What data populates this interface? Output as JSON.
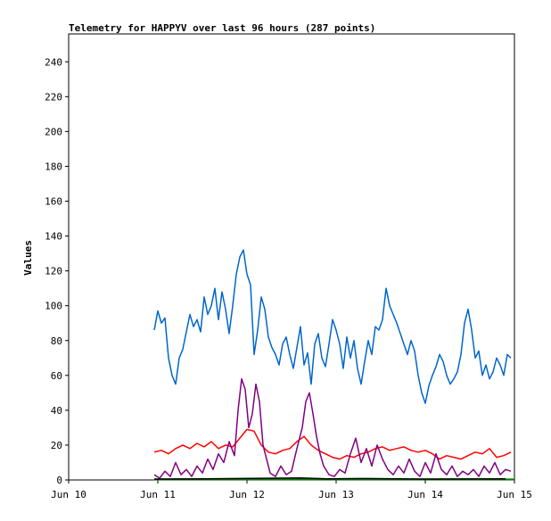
{
  "chart_data": {
    "type": "line",
    "title": "Telemetry for HAPPYV over last 96 hours (287 points)",
    "ylabel": "Values",
    "xlabel": "",
    "xlim": [
      0,
      5
    ],
    "ylim": [
      0,
      256
    ],
    "x_ticks": [
      {
        "value": 0,
        "label": "Jun 10"
      },
      {
        "value": 1,
        "label": "Jun 11"
      },
      {
        "value": 2,
        "label": "Jun 12"
      },
      {
        "value": 3,
        "label": "Jun 13"
      },
      {
        "value": 4,
        "label": "Jun 14"
      },
      {
        "value": 5,
        "label": "Jun 15"
      }
    ],
    "y_ticks": [
      0,
      20,
      40,
      60,
      80,
      100,
      120,
      140,
      160,
      180,
      200,
      220,
      240
    ],
    "grid": false,
    "legend": "none",
    "series": [
      {
        "color": "#0066cc",
        "x": [
          0.96,
          1.0,
          1.04,
          1.08,
          1.12,
          1.16,
          1.2,
          1.24,
          1.28,
          1.32,
          1.36,
          1.4,
          1.44,
          1.48,
          1.52,
          1.56,
          1.6,
          1.64,
          1.68,
          1.72,
          1.76,
          1.8,
          1.84,
          1.88,
          1.92,
          1.96,
          2.0,
          2.04,
          2.08,
          2.12,
          2.16,
          2.2,
          2.24,
          2.28,
          2.32,
          2.36,
          2.4,
          2.44,
          2.48,
          2.52,
          2.56,
          2.6,
          2.64,
          2.68,
          2.72,
          2.76,
          2.8,
          2.84,
          2.88,
          2.92,
          2.96,
          3.0,
          3.04,
          3.08,
          3.12,
          3.16,
          3.2,
          3.24,
          3.28,
          3.32,
          3.36,
          3.4,
          3.44,
          3.48,
          3.52,
          3.56,
          3.6,
          3.64,
          3.68,
          3.72,
          3.76,
          3.8,
          3.84,
          3.88,
          3.92,
          3.96,
          4.0,
          4.04,
          4.08,
          4.12,
          4.16,
          4.2,
          4.24,
          4.28,
          4.32,
          4.36,
          4.4,
          4.44,
          4.48,
          4.52,
          4.56,
          4.6,
          4.64,
          4.68,
          4.72,
          4.76,
          4.8,
          4.84,
          4.88,
          4.92,
          4.96
        ],
        "y": [
          86,
          97,
          90,
          93,
          70,
          60,
          55,
          70,
          75,
          85,
          95,
          88,
          92,
          85,
          105,
          95,
          100,
          110,
          92,
          108,
          98,
          84,
          100,
          118,
          128,
          132,
          118,
          112,
          72,
          86,
          105,
          98,
          82,
          76,
          72,
          66,
          78,
          82,
          72,
          64,
          76,
          88,
          66,
          73,
          55,
          78,
          84,
          70,
          65,
          78,
          92,
          86,
          78,
          64,
          82,
          70,
          80,
          64,
          55,
          68,
          80,
          72,
          88,
          86,
          92,
          110,
          100,
          95,
          90,
          84,
          78,
          72,
          80,
          74,
          60,
          50,
          44,
          54,
          60,
          65,
          72,
          68,
          60,
          55,
          58,
          62,
          72,
          90,
          98,
          86,
          70,
          74,
          60,
          66,
          58,
          62,
          70,
          66,
          60,
          72,
          70
        ]
      },
      {
        "color": "#ff0000",
        "x": [
          0.96,
          1.04,
          1.12,
          1.2,
          1.28,
          1.36,
          1.44,
          1.52,
          1.6,
          1.68,
          1.76,
          1.84,
          1.92,
          2.0,
          2.08,
          2.16,
          2.24,
          2.32,
          2.4,
          2.48,
          2.56,
          2.64,
          2.72,
          2.8,
          2.88,
          2.96,
          3.04,
          3.12,
          3.2,
          3.28,
          3.36,
          3.44,
          3.52,
          3.6,
          3.68,
          3.76,
          3.84,
          3.92,
          4.0,
          4.08,
          4.16,
          4.24,
          4.32,
          4.4,
          4.48,
          4.56,
          4.64,
          4.72,
          4.8,
          4.88,
          4.96
        ],
        "y": [
          16,
          17,
          15,
          18,
          20,
          18,
          21,
          19,
          22,
          18,
          20,
          19,
          24,
          29,
          28,
          20,
          16,
          15,
          17,
          18,
          22,
          25,
          20,
          17,
          15,
          13,
          12,
          14,
          13,
          15,
          16,
          18,
          19,
          17,
          18,
          19,
          17,
          16,
          17,
          15,
          12,
          14,
          13,
          12,
          14,
          16,
          15,
          18,
          13,
          14,
          16
        ]
      },
      {
        "color": "#800080",
        "x": [
          0.96,
          1.02,
          1.08,
          1.14,
          1.2,
          1.26,
          1.32,
          1.38,
          1.44,
          1.5,
          1.56,
          1.62,
          1.68,
          1.74,
          1.8,
          1.86,
          1.9,
          1.94,
          1.98,
          2.02,
          2.06,
          2.1,
          2.14,
          2.18,
          2.22,
          2.26,
          2.32,
          2.38,
          2.44,
          2.5,
          2.56,
          2.62,
          2.66,
          2.7,
          2.74,
          2.78,
          2.82,
          2.86,
          2.92,
          2.98,
          3.04,
          3.1,
          3.16,
          3.22,
          3.28,
          3.34,
          3.4,
          3.46,
          3.52,
          3.58,
          3.64,
          3.7,
          3.76,
          3.82,
          3.88,
          3.94,
          4.0,
          4.06,
          4.12,
          4.18,
          4.24,
          4.3,
          4.36,
          4.42,
          4.48,
          4.54,
          4.6,
          4.66,
          4.72,
          4.78,
          4.84,
          4.9,
          4.96
        ],
        "y": [
          3,
          1,
          5,
          2,
          10,
          3,
          6,
          2,
          8,
          4,
          12,
          6,
          15,
          10,
          22,
          14,
          40,
          58,
          52,
          30,
          38,
          55,
          45,
          20,
          12,
          4,
          2,
          8,
          3,
          5,
          18,
          30,
          45,
          50,
          38,
          25,
          15,
          8,
          3,
          2,
          6,
          4,
          15,
          24,
          10,
          18,
          8,
          20,
          12,
          6,
          3,
          8,
          4,
          12,
          5,
          2,
          10,
          4,
          15,
          6,
          3,
          8,
          2,
          5,
          3,
          6,
          2,
          8,
          4,
          10,
          3,
          6,
          5
        ]
      },
      {
        "color": "#008000",
        "x": [
          0.96,
          5.0
        ],
        "y": [
          0.3,
          0.3
        ]
      },
      {
        "color": "#000000",
        "x": [
          0.96,
          1.5,
          2.6,
          2.9,
          3.3,
          4.0,
          4.9
        ],
        "y": [
          0.5,
          0.6,
          1.2,
          0.6,
          0.8,
          0.5,
          0.6
        ]
      }
    ]
  }
}
